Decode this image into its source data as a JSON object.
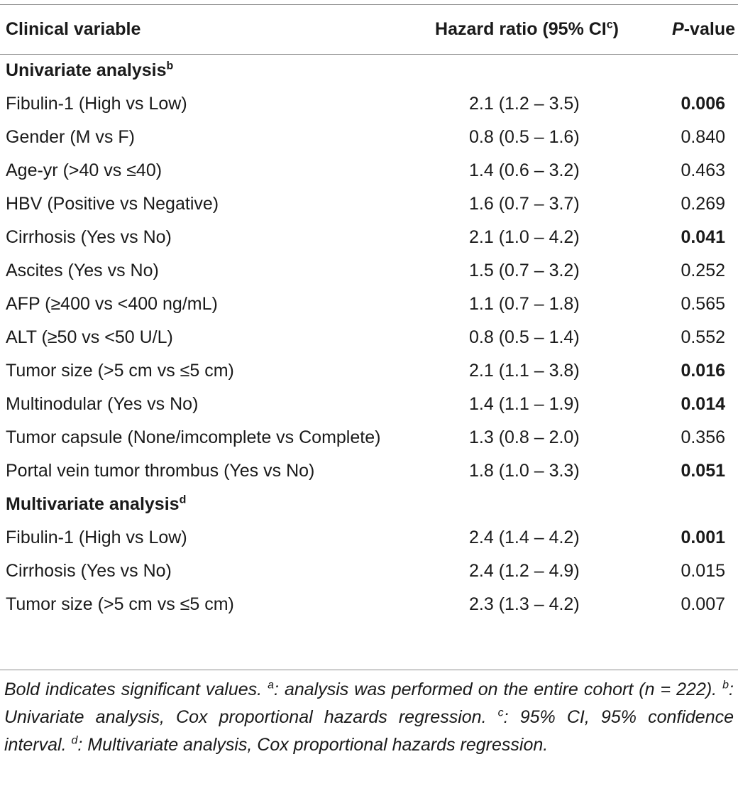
{
  "header": {
    "col1": "Clinical variable",
    "col2": "Hazard ratio (95% CI",
    "col2_sup": "c",
    "col2_close": ")",
    "col3_italic": "P",
    "col3_rest": "-value"
  },
  "sections": [
    {
      "title": "Univariate analysis",
      "title_sup": "b",
      "rows": [
        {
          "variable": "Fibulin-1 (High vs Low)",
          "hr": "2.1 (1.2 – 3.5)",
          "p": "0.006",
          "bold": true
        },
        {
          "variable": "Gender (M vs F)",
          "hr": "0.8 (0.5 – 1.6)",
          "p": "0.840",
          "bold": false
        },
        {
          "variable": "Age-yr (>40 vs ≤40)",
          "hr": "1.4 (0.6 – 3.2)",
          "p": "0.463",
          "bold": false
        },
        {
          "variable": "HBV (Positive vs Negative)",
          "hr": "1.6 (0.7 – 3.7)",
          "p": "0.269",
          "bold": false
        },
        {
          "variable": "Cirrhosis (Yes vs No)",
          "hr": "2.1 (1.0 – 4.2)",
          "p": "0.041",
          "bold": true
        },
        {
          "variable": "Ascites (Yes vs No)",
          "hr": "1.5 (0.7 – 3.2)",
          "p": "0.252",
          "bold": false
        },
        {
          "variable": "AFP (≥400 vs <400 ng/mL)",
          "hr": "1.1 (0.7 – 1.8)",
          "p": "0.565",
          "bold": false
        },
        {
          "variable": "ALT (≥50 vs <50 U/L)",
          "hr": "0.8 (0.5 – 1.4)",
          "p": "0.552",
          "bold": false
        },
        {
          "variable": "Tumor size (>5 cm vs ≤5 cm)",
          "hr": "2.1 (1.1 – 3.8)",
          "p": "0.016",
          "bold": true
        },
        {
          "variable": "Multinodular (Yes vs No)",
          "hr": "1.4 (1.1 – 1.9)",
          "p": "0.014",
          "bold": true
        },
        {
          "variable": "Tumor capsule (None/imcomplete vs Complete)",
          "hr": "1.3 (0.8 – 2.0)",
          "p": "0.356",
          "bold": false
        },
        {
          "variable": "Portal vein tumor thrombus (Yes vs No)",
          "hr": "1.8 (1.0 – 3.3)",
          "p": "0.051",
          "bold": true
        }
      ]
    },
    {
      "title": "Multivariate analysis",
      "title_sup": "d",
      "rows": [
        {
          "variable": "Fibulin-1 (High vs Low)",
          "hr": "2.4 (1.4 – 4.2)",
          "p": "0.001",
          "bold": true
        },
        {
          "variable": "Cirrhosis (Yes vs No)",
          "hr": "2.4 (1.2 – 4.9)",
          "p": "0.015",
          "bold": false
        },
        {
          "variable": "Tumor size (>5 cm vs ≤5 cm)",
          "hr": "2.3 (1.3 – 4.2)",
          "p": "0.007",
          "bold": false
        }
      ]
    }
  ],
  "footnote": {
    "s1": "Bold indicates significant values. ",
    "a_sup": "a",
    "s2": ": analysis was performed on the entire cohort (n = 222). ",
    "b_sup": "b",
    "s3": ": Univariate analysis, Cox proportional hazards regression. ",
    "c_sup": "c",
    "s4": ": 95% CI, 95% confidence interval. ",
    "d_sup": "d",
    "s5": ": Multivariate analysis, Cox proportional hazards regression."
  }
}
